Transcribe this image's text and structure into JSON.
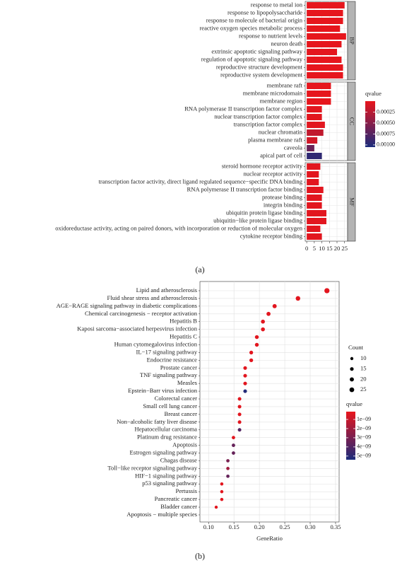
{
  "chart_data": [
    {
      "type": "bar",
      "orientation": "horizontal",
      "caption": "(a)",
      "facets": [
        {
          "name": "BP",
          "categories": [
            "response to metal ion",
            "response to lipopolysaccharide",
            "response to molecule of bacterial origin",
            "reactive oxygen species metabolic process",
            "response to nutrient levels",
            "neuron death",
            "extrinsic apoptotic signaling pathway",
            "regulation of apoptotic signaling pathway",
            "reproductive structure development",
            "reproductive system development"
          ],
          "values": [
            25,
            24,
            24,
            22,
            26,
            23,
            20,
            23,
            24,
            24
          ],
          "qvalues": [
            1e-05,
            1e-05,
            1e-05,
            1e-05,
            1e-05,
            1e-05,
            2e-05,
            1e-05,
            1e-05,
            1e-05
          ]
        },
        {
          "name": "CC",
          "categories": [
            "membrane raft",
            "membrane microdomain",
            "membrane region",
            "RNA polymerase II transcription factor complex",
            "nuclear transcription factor complex",
            "transcription factor complex",
            "nuclear chromatin",
            "plasma membrane raft",
            "caveola",
            "apical part of cell"
          ],
          "values": [
            16,
            16,
            16,
            10,
            10,
            12,
            11,
            7,
            5,
            10
          ],
          "qvalues": [
            1e-05,
            1e-05,
            1e-05,
            3e-05,
            3e-05,
            3e-05,
            0.0002,
            0.00012,
            0.00065,
            0.00095
          ]
        },
        {
          "name": "MF",
          "categories": [
            "steroid hormone receptor activity",
            "nuclear receptor activity",
            "transcription factor activity, direct ligand regulated sequence−specific DNA binding",
            "RNA polymerase II transcription factor binding",
            "protease binding",
            "integrin binding",
            "ubiquitin protein ligase binding",
            "ubiquitin−like protein ligase binding",
            "oxidoreductase activity, acting on paired donors, with incorporation or reduction of molecular oxygen",
            "cytokine receptor binding"
          ],
          "values": [
            9,
            8,
            8,
            11,
            10,
            10,
            13,
            13,
            9,
            10
          ],
          "qvalues": [
            3e-05,
            3e-05,
            3e-05,
            3e-05,
            3e-05,
            3e-05,
            3e-05,
            3e-05,
            3e-05,
            3e-05
          ]
        }
      ],
      "xlim": [
        -1,
        27
      ],
      "xticks": [
        0,
        5,
        10,
        15,
        20,
        25
      ],
      "grid": true,
      "color_scale": {
        "title": "qvalue",
        "lim": [
          0,
          0.00105
        ],
        "ticks": [
          0.00025,
          {
            "value": 0.0005,
            "label": "0.00050"
          },
          0.00075,
          {
            "value": 0.001,
            "label": "0.00100"
          }
        ],
        "colors": [
          "#e8161c",
          "#1b2c7c"
        ]
      }
    },
    {
      "type": "scatter",
      "caption": "(b)",
      "x_label": "GeneRatio",
      "categories": [
        "Lipid and atherosclerosis",
        "Fluid shear stress and atherosclerosis",
        "AGE−RAGE signaling pathway in diabetic complications",
        "Chemical carcinogenesis − receptor activation",
        "Hepatitis B",
        "Kaposi sarcoma−associated herpesvirus infection",
        "Hepatitis C",
        "Human cytomegalovirus infection",
        "IL−17 signaling pathway",
        "Endocrine resistance",
        "Prostate cancer",
        "TNF signaling pathway",
        "Measles",
        "Epstein−Barr virus infection",
        "Colorectal cancer",
        "Small cell lung cancer",
        "Breast cancer",
        "Non−alcoholic fatty liver disease",
        "Hepatocellular carcinoma",
        "Platinum drug resistance",
        "Apoptosis",
        "Estrogen signaling pathway",
        "Chagas disease",
        "Toll−like receptor signaling pathway",
        "HIF−1 signaling pathway",
        "p53 signaling pathway",
        "Pertussis",
        "Pancreatic cancer",
        "Bladder cancer",
        "Apoptosis − multiple species"
      ],
      "x": [
        0.333,
        0.276,
        0.23,
        0.218,
        0.207,
        0.207,
        0.195,
        0.195,
        0.184,
        0.184,
        0.172,
        0.172,
        0.172,
        0.172,
        0.161,
        0.161,
        0.161,
        0.161,
        0.161,
        0.149,
        0.149,
        0.149,
        0.138,
        0.138,
        0.138,
        0.126,
        0.126,
        0.126,
        0.115,
        null
      ],
      "sizes": [
        29,
        24,
        20,
        19,
        18,
        18,
        17,
        17,
        16,
        16,
        15,
        15,
        15,
        15,
        14,
        14,
        14,
        14,
        14,
        13,
        13,
        13,
        12,
        12,
        12,
        11,
        11,
        11,
        10,
        null
      ],
      "qvalues": [
        3e-10,
        3e-10,
        3e-10,
        3e-10,
        3e-10,
        3e-10,
        3e-10,
        3e-10,
        3e-10,
        3e-10,
        3e-10,
        3e-10,
        3e-10,
        5.2e-09,
        3e-10,
        3e-10,
        3e-10,
        3e-10,
        4e-09,
        3e-10,
        3.5e-09,
        3.5e-09,
        3e-09,
        2e-09,
        3.5e-09,
        3e-10,
        3e-10,
        3e-10,
        3e-10,
        null
      ],
      "xlim": [
        0.083,
        0.357
      ],
      "xticks": [
        {
          "value": 0.1,
          "label": "0.10"
        },
        0.15,
        {
          "value": 0.2,
          "label": "0.20"
        },
        0.25,
        {
          "value": 0.3,
          "label": "0.30"
        },
        0.35
      ],
      "grid": true,
      "size_legend": {
        "title": "Count",
        "values": [
          10,
          15,
          20,
          25
        ]
      },
      "color_scale": {
        "title": "qvalue",
        "lim": [
          1.5e-10,
          5.4e-09
        ],
        "ticks": [
          {
            "value": 1e-09,
            "label": "1e−09"
          },
          {
            "value": 2e-09,
            "label": "2e−09"
          },
          {
            "value": 3e-09,
            "label": "3e−09"
          },
          {
            "value": 4e-09,
            "label": "4e−09"
          },
          {
            "value": 5e-09,
            "label": "5e−09"
          }
        ],
        "colors": [
          "#e8161c",
          "#1b2c7c"
        ]
      }
    }
  ]
}
